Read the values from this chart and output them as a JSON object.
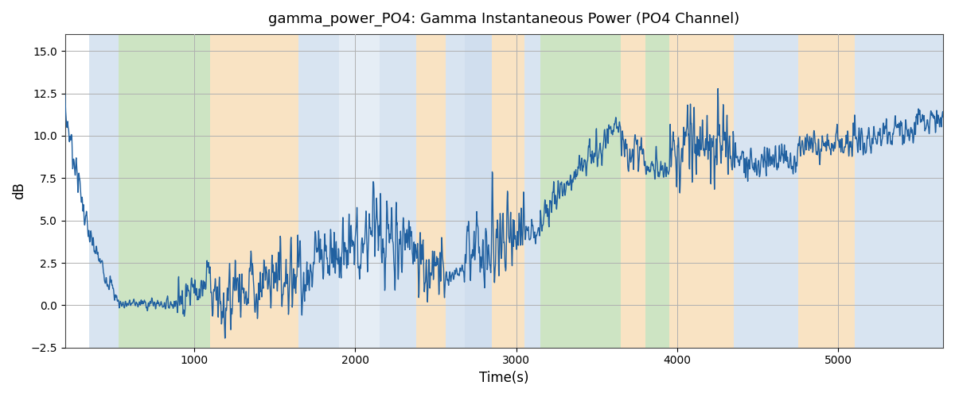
{
  "title": "gamma_power_PO4: Gamma Instantaneous Power (PO4 Channel)",
  "xlabel": "Time(s)",
  "ylabel": "dB",
  "ylim": [
    -2.5,
    16.0
  ],
  "xlim": [
    200,
    5650
  ],
  "background_color": "#ffffff",
  "line_color": "#2060a0",
  "line_width": 1.0,
  "grid_color": "#b0b0b0",
  "bands": [
    {
      "start": 350,
      "end": 530,
      "color": "#aac4e0",
      "alpha": 0.45
    },
    {
      "start": 530,
      "end": 1100,
      "color": "#90c47a",
      "alpha": 0.45
    },
    {
      "start": 1100,
      "end": 1650,
      "color": "#f5c888",
      "alpha": 0.5
    },
    {
      "start": 1650,
      "end": 1900,
      "color": "#aac4e0",
      "alpha": 0.45
    },
    {
      "start": 1900,
      "end": 2150,
      "color": "#aac4e0",
      "alpha": 0.3
    },
    {
      "start": 2150,
      "end": 2380,
      "color": "#aac4e0",
      "alpha": 0.45
    },
    {
      "start": 2380,
      "end": 2560,
      "color": "#f5c888",
      "alpha": 0.5
    },
    {
      "start": 2560,
      "end": 2680,
      "color": "#aac4e0",
      "alpha": 0.45
    },
    {
      "start": 2680,
      "end": 2850,
      "color": "#aac4e0",
      "alpha": 0.55
    },
    {
      "start": 2850,
      "end": 3050,
      "color": "#f5c888",
      "alpha": 0.5
    },
    {
      "start": 3050,
      "end": 3150,
      "color": "#aac4e0",
      "alpha": 0.45
    },
    {
      "start": 3150,
      "end": 3650,
      "color": "#90c47a",
      "alpha": 0.45
    },
    {
      "start": 3650,
      "end": 3800,
      "color": "#f5c888",
      "alpha": 0.5
    },
    {
      "start": 3800,
      "end": 3950,
      "color": "#90c47a",
      "alpha": 0.45
    },
    {
      "start": 3950,
      "end": 4350,
      "color": "#f5c888",
      "alpha": 0.5
    },
    {
      "start": 4350,
      "end": 4750,
      "color": "#aac4e0",
      "alpha": 0.45
    },
    {
      "start": 4750,
      "end": 5100,
      "color": "#f5c888",
      "alpha": 0.5
    },
    {
      "start": 5100,
      "end": 5650,
      "color": "#aac4e0",
      "alpha": 0.45
    }
  ],
  "xticks": [
    1000,
    2000,
    3000,
    4000,
    5000
  ],
  "yticks": [
    -2.5,
    0.0,
    2.5,
    5.0,
    7.5,
    10.0,
    12.5,
    15.0
  ],
  "n_points": 3000,
  "seed": 7
}
